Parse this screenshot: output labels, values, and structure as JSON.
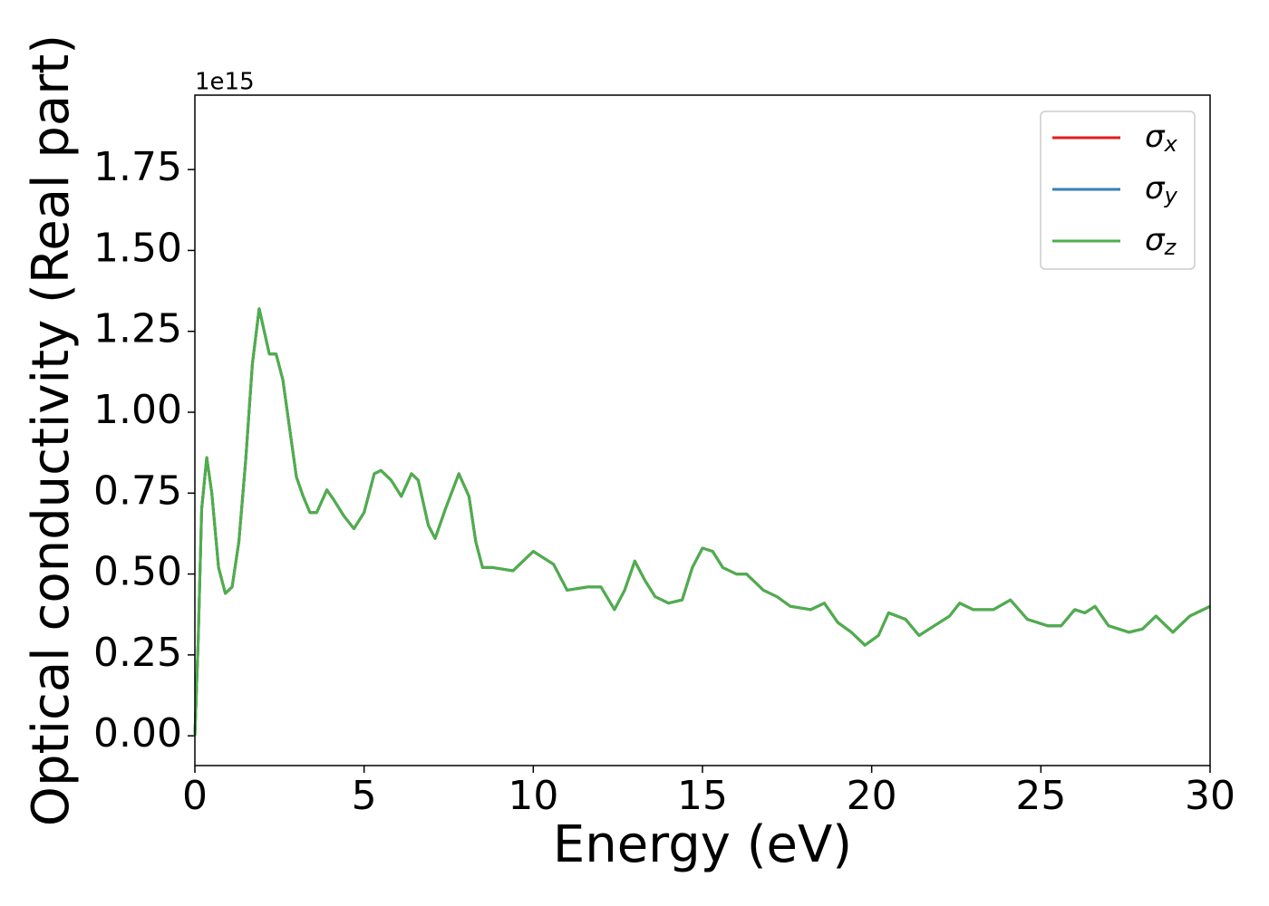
{
  "chart_data": {
    "type": "line",
    "xlabel": "Energy (eV)",
    "ylabel": "Optical conductivity (Real part)",
    "y_offset_label": "1e15",
    "x": [
      0,
      0.1,
      0.2,
      0.35,
      0.5,
      0.7,
      0.9,
      1.1,
      1.3,
      1.5,
      1.7,
      1.9,
      2.05,
      2.2,
      2.4,
      2.6,
      2.8,
      3.0,
      3.2,
      3.4,
      3.6,
      3.9,
      4.1,
      4.4,
      4.7,
      5.0,
      5.3,
      5.5,
      5.8,
      6.1,
      6.4,
      6.6,
      6.9,
      7.1,
      7.4,
      7.8,
      8.1,
      8.3,
      8.5,
      8.8,
      9.4,
      10.0,
      10.3,
      10.6,
      11.0,
      11.6,
      12.0,
      12.4,
      12.7,
      13.0,
      13.3,
      13.6,
      14.0,
      14.4,
      14.7,
      15.0,
      15.3,
      15.6,
      16.0,
      16.3,
      16.8,
      17.2,
      17.6,
      18.2,
      18.6,
      19.0,
      19.4,
      19.8,
      20.2,
      20.5,
      21.0,
      21.4,
      22.0,
      22.3,
      22.6,
      23.0,
      23.6,
      24.1,
      24.6,
      25.2,
      25.6,
      26.0,
      26.3,
      26.6,
      27.0,
      27.6,
      28.0,
      28.4,
      28.9,
      29.4,
      30.0
    ],
    "series": [
      {
        "name": "σx",
        "color": "#e41a1c",
        "values": [
          0,
          0.3,
          0.7,
          0.86,
          0.75,
          0.52,
          0.44,
          0.46,
          0.6,
          0.85,
          1.15,
          1.32,
          1.25,
          1.18,
          1.18,
          1.1,
          0.95,
          0.8,
          0.74,
          0.69,
          0.69,
          0.76,
          0.73,
          0.68,
          0.64,
          0.69,
          0.81,
          0.82,
          0.79,
          0.74,
          0.81,
          0.79,
          0.65,
          0.61,
          0.7,
          0.81,
          0.74,
          0.6,
          0.52,
          0.52,
          0.51,
          0.57,
          0.55,
          0.53,
          0.45,
          0.46,
          0.46,
          0.39,
          0.45,
          0.54,
          0.48,
          0.43,
          0.41,
          0.42,
          0.52,
          0.58,
          0.57,
          0.52,
          0.5,
          0.5,
          0.45,
          0.43,
          0.4,
          0.39,
          0.41,
          0.35,
          0.32,
          0.28,
          0.31,
          0.38,
          0.36,
          0.31,
          0.35,
          0.37,
          0.41,
          0.39,
          0.39,
          0.42,
          0.36,
          0.34,
          0.34,
          0.39,
          0.38,
          0.4,
          0.34,
          0.32,
          0.33,
          0.37,
          0.32,
          0.37,
          0.4
        ]
      },
      {
        "name": "σy",
        "color": "#377eb8",
        "values": [
          0,
          0.3,
          0.7,
          0.86,
          0.75,
          0.52,
          0.44,
          0.46,
          0.6,
          0.85,
          1.15,
          1.32,
          1.25,
          1.18,
          1.18,
          1.1,
          0.95,
          0.8,
          0.74,
          0.69,
          0.69,
          0.76,
          0.73,
          0.68,
          0.64,
          0.69,
          0.81,
          0.82,
          0.79,
          0.74,
          0.81,
          0.79,
          0.65,
          0.61,
          0.7,
          0.81,
          0.74,
          0.6,
          0.52,
          0.52,
          0.51,
          0.57,
          0.55,
          0.53,
          0.45,
          0.46,
          0.46,
          0.39,
          0.45,
          0.54,
          0.48,
          0.43,
          0.41,
          0.42,
          0.52,
          0.58,
          0.57,
          0.52,
          0.5,
          0.5,
          0.45,
          0.43,
          0.4,
          0.39,
          0.41,
          0.35,
          0.32,
          0.28,
          0.31,
          0.38,
          0.36,
          0.31,
          0.35,
          0.37,
          0.41,
          0.39,
          0.39,
          0.42,
          0.36,
          0.34,
          0.34,
          0.39,
          0.38,
          0.4,
          0.34,
          0.32,
          0.33,
          0.37,
          0.32,
          0.37,
          0.4
        ]
      },
      {
        "name": "σz",
        "color": "#4daf4a",
        "values": [
          0,
          0.3,
          0.7,
          0.86,
          0.75,
          0.52,
          0.44,
          0.46,
          0.6,
          0.85,
          1.15,
          1.32,
          1.25,
          1.18,
          1.18,
          1.1,
          0.95,
          0.8,
          0.74,
          0.69,
          0.69,
          0.76,
          0.73,
          0.68,
          0.64,
          0.69,
          0.81,
          0.82,
          0.79,
          0.74,
          0.81,
          0.79,
          0.65,
          0.61,
          0.7,
          0.81,
          0.74,
          0.6,
          0.52,
          0.52,
          0.51,
          0.57,
          0.55,
          0.53,
          0.45,
          0.46,
          0.46,
          0.39,
          0.45,
          0.54,
          0.48,
          0.43,
          0.41,
          0.42,
          0.52,
          0.58,
          0.57,
          0.52,
          0.5,
          0.5,
          0.45,
          0.43,
          0.4,
          0.39,
          0.41,
          0.35,
          0.32,
          0.28,
          0.31,
          0.38,
          0.36,
          0.31,
          0.35,
          0.37,
          0.41,
          0.39,
          0.39,
          0.42,
          0.36,
          0.34,
          0.34,
          0.39,
          0.38,
          0.4,
          0.34,
          0.32,
          0.33,
          0.37,
          0.32,
          0.37,
          0.4
        ]
      }
    ],
    "xlim": [
      0,
      30
    ],
    "xticks": [
      0,
      5,
      10,
      15,
      20,
      25,
      30
    ],
    "ylim": [
      -0.092,
      1.98
    ],
    "yticks": [
      {
        "value": 0,
        "label": "0.00"
      },
      {
        "value": 0.25,
        "label": "0.25"
      },
      {
        "value": 0.5,
        "label": "0.50"
      },
      {
        "value": 0.75,
        "label": "0.75"
      },
      {
        "value": 1.0,
        "label": "1.00"
      },
      {
        "value": 1.25,
        "label": "1.25"
      },
      {
        "value": 1.5,
        "label": "1.50"
      },
      {
        "value": 1.75,
        "label": "1.75"
      }
    ],
    "grid": false,
    "legend": "upper right"
  }
}
